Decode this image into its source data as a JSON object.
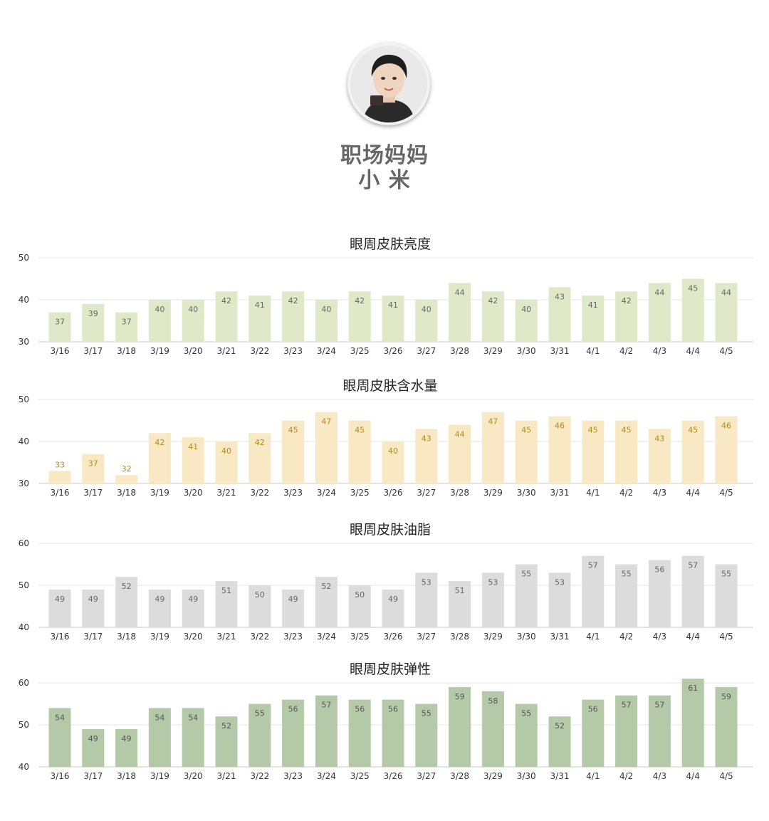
{
  "profile": {
    "name_line1": "职场妈妈",
    "name_line2": "小 米"
  },
  "chart_data": [
    {
      "type": "bar",
      "title": "眼周皮肤亮度",
      "categories": [
        "3/16",
        "3/17",
        "3/18",
        "3/19",
        "3/20",
        "3/21",
        "3/22",
        "3/23",
        "3/24",
        "3/25",
        "3/26",
        "3/27",
        "3/28",
        "3/29",
        "3/30",
        "3/31",
        "4/1",
        "4/2",
        "4/3",
        "4/4",
        "4/5"
      ],
      "values": [
        37,
        39,
        37,
        40,
        40,
        42,
        41,
        42,
        40,
        42,
        41,
        40,
        44,
        42,
        40,
        43,
        41,
        42,
        44,
        45,
        44
      ],
      "yticks": [
        30,
        40,
        50
      ],
      "ylim": [
        30,
        50
      ],
      "grid": true,
      "color": "#dfe9c8",
      "label_color": "#666666"
    },
    {
      "type": "bar",
      "title": "眼周皮肤含水量",
      "categories": [
        "3/16",
        "3/17",
        "3/18",
        "3/19",
        "3/20",
        "3/21",
        "3/22",
        "3/23",
        "3/24",
        "3/25",
        "3/26",
        "3/27",
        "3/28",
        "3/29",
        "3/30",
        "3/31",
        "4/1",
        "4/2",
        "4/3",
        "4/4",
        "4/5"
      ],
      "values": [
        33,
        37,
        32,
        42,
        41,
        40,
        42,
        45,
        47,
        45,
        40,
        43,
        44,
        47,
        45,
        46,
        45,
        45,
        43,
        45,
        46
      ],
      "yticks": [
        30,
        40,
        50
      ],
      "ylim": [
        30,
        50
      ],
      "grid": true,
      "color": "#f8e9c4",
      "label_color": "#b08a1a"
    },
    {
      "type": "bar",
      "title": "眼周皮肤油脂",
      "categories": [
        "3/16",
        "3/17",
        "3/18",
        "3/19",
        "3/20",
        "3/21",
        "3/22",
        "3/23",
        "3/24",
        "3/25",
        "3/26",
        "3/27",
        "3/28",
        "3/29",
        "3/30",
        "3/31",
        "4/1",
        "4/2",
        "4/3",
        "4/4",
        "4/5"
      ],
      "values": [
        49,
        49,
        52,
        49,
        49,
        51,
        50,
        49,
        52,
        50,
        49,
        53,
        51,
        53,
        55,
        53,
        57,
        55,
        56,
        57,
        55
      ],
      "yticks": [
        40,
        50,
        60
      ],
      "ylim": [
        40,
        60
      ],
      "grid": true,
      "color": "#dcdcdc",
      "label_color": "#666666"
    },
    {
      "type": "bar",
      "title": "眼周皮肤弹性",
      "categories": [
        "3/16",
        "3/17",
        "3/18",
        "3/19",
        "3/20",
        "3/21",
        "3/22",
        "3/23",
        "3/24",
        "3/25",
        "3/26",
        "3/27",
        "3/28",
        "3/29",
        "3/30",
        "3/31",
        "4/1",
        "4/2",
        "4/3",
        "4/4",
        "4/5"
      ],
      "values": [
        54,
        49,
        49,
        54,
        54,
        52,
        55,
        56,
        57,
        56,
        56,
        55,
        59,
        58,
        55,
        52,
        56,
        57,
        57,
        61,
        59
      ],
      "yticks": [
        40,
        50,
        60
      ],
      "ylim": [
        40,
        60
      ],
      "grid": true,
      "color": "#b4c9a8",
      "label_color": "#555555"
    }
  ]
}
